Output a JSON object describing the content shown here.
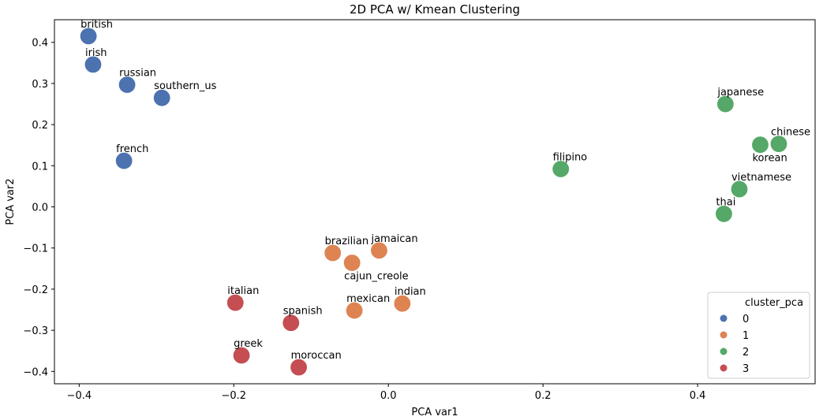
{
  "chart_data": {
    "type": "scatter",
    "title": "2D PCA w/ Kmean Clustering",
    "xlabel": "PCA var1",
    "ylabel": "PCA var2",
    "xlim": [
      -0.432,
      0.552
    ],
    "ylim": [
      -0.43,
      0.455
    ],
    "xticks": [
      -0.4,
      -0.2,
      0.0,
      0.2,
      0.4
    ],
    "xtick_labels": [
      "−0.4",
      "−0.2",
      "0.0",
      "0.2",
      "0.4"
    ],
    "yticks": [
      -0.4,
      -0.3,
      -0.2,
      -0.1,
      0.0,
      0.1,
      0.2,
      0.3,
      0.4
    ],
    "ytick_labels": [
      "−0.4",
      "−0.3",
      "−0.2",
      "−0.1",
      "0.0",
      "0.1",
      "0.2",
      "0.3",
      "0.4"
    ],
    "grid": false,
    "legend": {
      "title": "cluster_pca",
      "placement": "bottom-right",
      "entries": [
        {
          "label": "0",
          "color": "#4c72b0"
        },
        {
          "label": "1",
          "color": "#dd8452"
        },
        {
          "label": "2",
          "color": "#55a868"
        },
        {
          "label": "3",
          "color": "#c44e52"
        }
      ]
    },
    "points": [
      {
        "label": "british",
        "x": -0.388,
        "y": 0.415,
        "cluster": 0,
        "label_pos": "above"
      },
      {
        "label": "irish",
        "x": -0.382,
        "y": 0.346,
        "cluster": 0,
        "label_pos": "above"
      },
      {
        "label": "russian",
        "x": -0.338,
        "y": 0.297,
        "cluster": 0,
        "label_pos": "above"
      },
      {
        "label": "southern_us",
        "x": -0.293,
        "y": 0.265,
        "cluster": 0,
        "label_pos": "above"
      },
      {
        "label": "french",
        "x": -0.342,
        "y": 0.112,
        "cluster": 0,
        "label_pos": "above"
      },
      {
        "label": "brazilian",
        "x": -0.072,
        "y": -0.112,
        "cluster": 1,
        "label_pos": "above"
      },
      {
        "label": "jamaican",
        "x": -0.012,
        "y": -0.106,
        "cluster": 1,
        "label_pos": "above"
      },
      {
        "label": "cajun_creole",
        "x": -0.047,
        "y": -0.136,
        "cluster": 1,
        "label_pos": "below"
      },
      {
        "label": "mexican",
        "x": -0.044,
        "y": -0.252,
        "cluster": 1,
        "label_pos": "above"
      },
      {
        "label": "indian",
        "x": 0.018,
        "y": -0.235,
        "cluster": 1,
        "label_pos": "above"
      },
      {
        "label": "japanese",
        "x": 0.436,
        "y": 0.25,
        "cluster": 2,
        "label_pos": "above"
      },
      {
        "label": "chinese",
        "x": 0.505,
        "y": 0.153,
        "cluster": 2,
        "label_pos": "above"
      },
      {
        "label": "korean",
        "x": 0.481,
        "y": 0.151,
        "cluster": 2,
        "label_pos": "below"
      },
      {
        "label": "filipino",
        "x": 0.223,
        "y": 0.092,
        "cluster": 2,
        "label_pos": "above"
      },
      {
        "label": "vietnamese",
        "x": 0.454,
        "y": 0.043,
        "cluster": 2,
        "label_pos": "above"
      },
      {
        "label": "thai",
        "x": 0.434,
        "y": -0.017,
        "cluster": 2,
        "label_pos": "above"
      },
      {
        "label": "italian",
        "x": -0.198,
        "y": -0.233,
        "cluster": 3,
        "label_pos": "above"
      },
      {
        "label": "spanish",
        "x": -0.126,
        "y": -0.282,
        "cluster": 3,
        "label_pos": "above"
      },
      {
        "label": "greek",
        "x": -0.19,
        "y": -0.361,
        "cluster": 3,
        "label_pos": "above"
      },
      {
        "label": "moroccan",
        "x": -0.116,
        "y": -0.39,
        "cluster": 3,
        "label_pos": "above"
      }
    ]
  }
}
